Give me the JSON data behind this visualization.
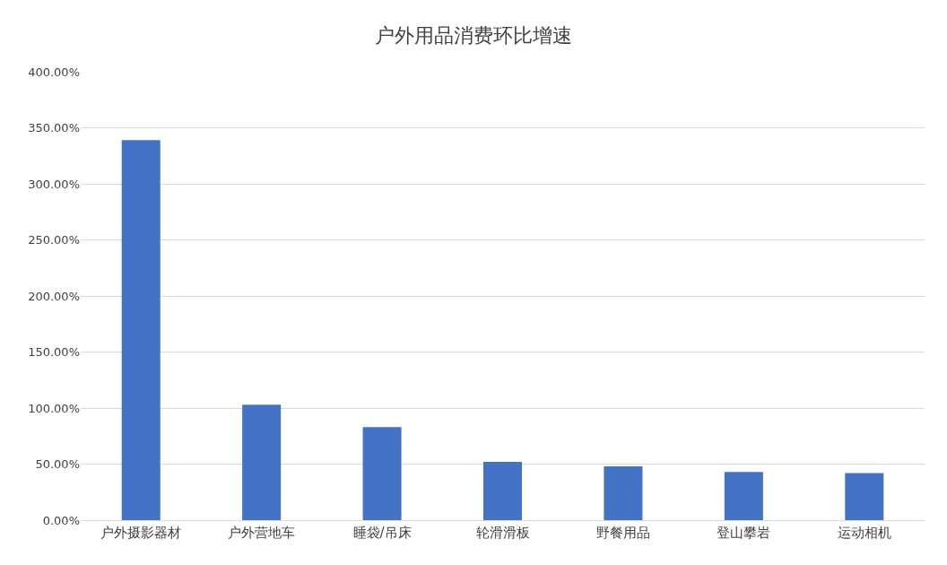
{
  "chart_data": {
    "type": "bar",
    "title": "户外用品消费环比增速",
    "categories": [
      "户外摄影器材",
      "户外营地车",
      "睡袋/吊床",
      "轮滑滑板",
      "野餐用品",
      "登山攀岩",
      "运动相机"
    ],
    "values": [
      339,
      103,
      83,
      52,
      48,
      43,
      42
    ],
    "color": "#4472c4",
    "ylim": [
      0,
      400
    ],
    "yticks": [
      {
        "value": 0,
        "label": "0.00%"
      },
      {
        "value": 50,
        "label": "50.00%"
      },
      {
        "value": 100,
        "label": "100.00%"
      },
      {
        "value": 150,
        "label": "150.00%"
      },
      {
        "value": 200,
        "label": "200.00%"
      },
      {
        "value": 250,
        "label": "250.00%"
      },
      {
        "value": 300,
        "label": "300.00%"
      },
      {
        "value": 350,
        "label": "350.00%"
      },
      {
        "value": 400,
        "label": "400.00%"
      }
    ],
    "grid": "y"
  }
}
